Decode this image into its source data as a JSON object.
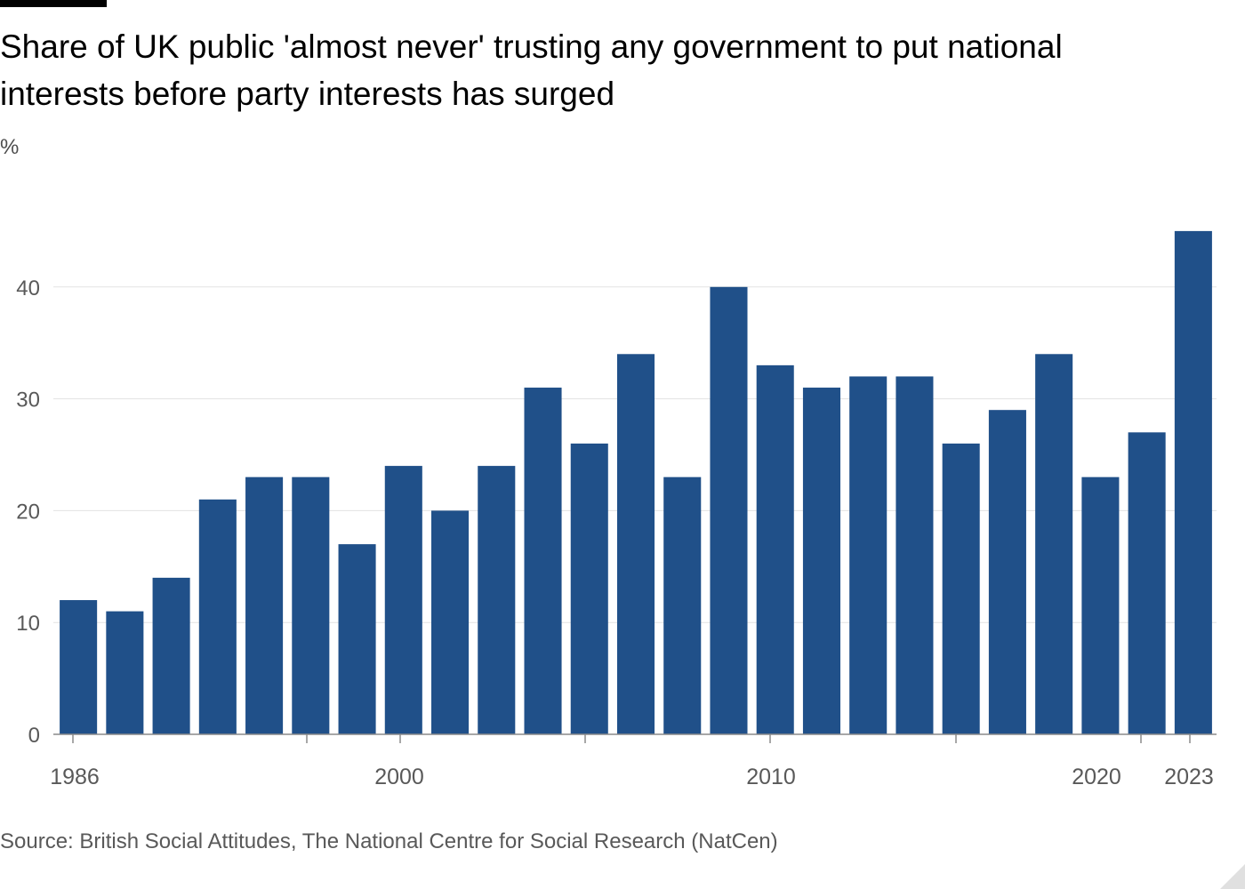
{
  "header": {
    "title": "Share of UK public 'almost never' trusting any government to put national interests before party interests has surged"
  },
  "chart_data": {
    "type": "bar",
    "title": "Share of UK public 'almost never' trusting any government to put national interests before party interests has surged",
    "ylabel": "%",
    "ylim": [
      0,
      45
    ],
    "yticks": [
      0,
      10,
      20,
      30,
      40
    ],
    "grid": true,
    "bar_color": "#205089",
    "x": [
      1986,
      1987,
      1991,
      1994,
      1996,
      1997,
      1998,
      2000,
      2001,
      2002,
      2003,
      2005,
      2006,
      2007,
      2009,
      2010,
      2011,
      2012,
      2013,
      2015,
      2016,
      2018,
      2020,
      2021,
      2023
    ],
    "values": [
      12,
      11,
      14,
      21,
      23,
      23,
      17,
      24,
      20,
      24,
      31,
      26,
      34,
      23,
      40,
      33,
      31,
      32,
      32,
      26,
      29,
      34,
      23,
      27,
      45
    ],
    "xtick_labels": [
      "1986",
      "2000",
      "2010",
      "2020",
      "2023"
    ]
  },
  "footer": {
    "source": "Source: British Social Attitudes, The National Centre for Social Research (NatCen)"
  }
}
